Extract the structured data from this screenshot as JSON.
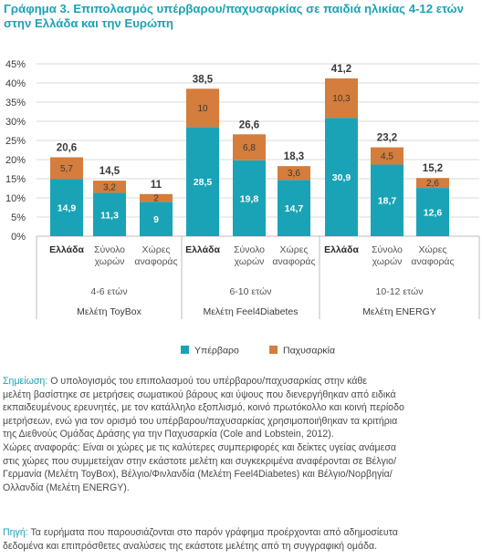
{
  "title": {
    "lead": "Γράφημα 3.",
    "text": "Επιπολασμός υπέρβαρου/παχυσαρκίας σε παιδιά ηλικίας 4-12 ετών στην Ελλάδα και την Ευρώπη"
  },
  "colors": {
    "overweight": "#1aa3b6",
    "obesity": "#d47d3c",
    "accent_text": "#1aa3b6",
    "grid": "#d9d9d9"
  },
  "chart_data": {
    "type": "bar",
    "stacked": true,
    "ylim": [
      0,
      45
    ],
    "yticks": [
      "0%",
      "5%",
      "10%",
      "15%",
      "20%",
      "25%",
      "30%",
      "35%",
      "40%",
      "45%"
    ],
    "categories": [
      "Ελλάδα",
      "Σύνολο χωρών",
      "Χώρες αναφοράς",
      "Ελλάδα",
      "Σύνολο χωρών",
      "Χώρες αναφοράς",
      "Ελλάδα",
      "Σύνολο χωρών",
      "Χώρες αναφοράς"
    ],
    "category_lines": [
      [
        "Ελλάδα"
      ],
      [
        "Σύνολο",
        "χωρών"
      ],
      [
        "Χώρες",
        "αναφοράς"
      ],
      [
        "Ελλάδα"
      ],
      [
        "Σύνολο",
        "χωρών"
      ],
      [
        "Χώρες",
        "αναφοράς"
      ],
      [
        "Ελλάδα"
      ],
      [
        "Σύνολο",
        "χωρών"
      ],
      [
        "Χώρες",
        "αναφοράς"
      ]
    ],
    "bold_category": [
      true,
      false,
      false,
      true,
      false,
      false,
      true,
      false,
      false
    ],
    "series": [
      {
        "name": "Υπέρβαρο",
        "values": [
          14.9,
          11.3,
          9,
          28.5,
          19.8,
          14.7,
          30.9,
          18.7,
          12.6
        ]
      },
      {
        "name": "Παχυσαρκία",
        "values": [
          5.7,
          3.2,
          2,
          10,
          6.8,
          3.6,
          10.3,
          4.5,
          2.6
        ]
      }
    ],
    "totals": [
      20.6,
      14.5,
      11,
      38.5,
      26.6,
      18.3,
      41.2,
      23.2,
      15.2
    ],
    "groups": [
      {
        "age": "4-6 ετών",
        "study": "Μελέτη ToyBox"
      },
      {
        "age": "6-10 ετών",
        "study": "Μελέτη Feel4Diabetes"
      },
      {
        "age": "10-12 ετών",
        "study": "Μελέτη ENERGY"
      }
    ],
    "legend_position": "bottom"
  },
  "notes": {
    "note1_label": "Σημείωση:",
    "note1_lines": [
      " Ο υπολογισμός του επιπολασμού του υπέρβαρου/παχυσαρκίας στην κάθε",
      "μελέτη βασίστηκε σε μετρήσεις σωματικού βάρους και ύψους που διενεργήθηκαν από ειδικά",
      "εκπαιδευμένους ερευνητές, με τον κατάλληλο εξοπλισμό, κοινό πρωτόκολλο και κοινή περίοδο",
      "μετρήσεων, ενώ για τον ορισμό του υπέρβαρου/παχυσαρκίας χρησιμοποιήθηκαν τα κριτήρια",
      "της Διεθνούς Ομάδας Δράσης για την Παχυσαρκία (Cole and Lobstein, 2012).",
      "Χώρες αναφοράς: Είναι οι χώρες με τις καλύτερες συμπεριφορές και δείκτες υγείας ανάμεσα",
      "στις χώρες που συμμετείχαν στην εκάστοτε μελέτη και συγκεκριμένα αναφέρονται σε Βέλγιο/",
      "Γερμανία (Μελέτη ToyBox), Βέλγιο/Φινλανδία (Μελέτη Feel4Diabetes) και Βέλγιο/Νορβηγία/",
      "Ολλανδία (Μελέτη ENERGY)."
    ],
    "source_label": "Πηγή:",
    "source_lines": [
      " Τα ευρήματα που παρουσιάζονται στο παρόν γράφημα προέρχονται από αδημοσίευτα",
      "δεδομένα και επιπρόσθετες αναλύσεις της εκάστοτε μελέτης από τη συγγραφική ομάδα."
    ]
  }
}
